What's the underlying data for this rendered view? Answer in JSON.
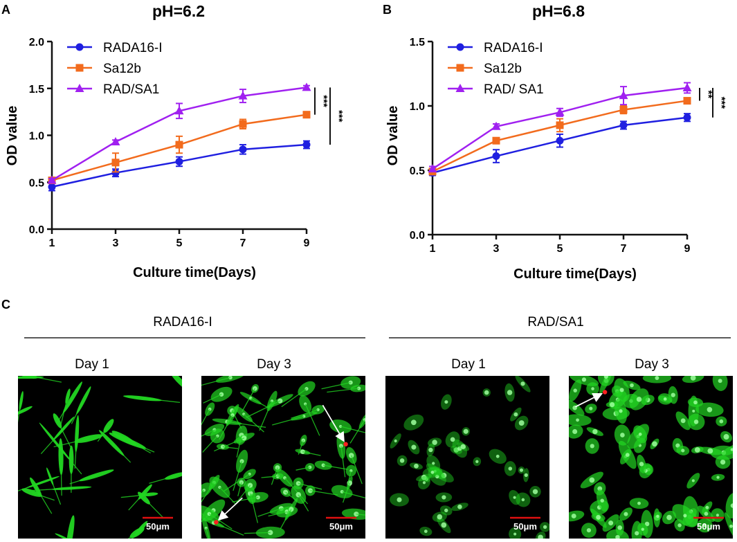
{
  "chart_data": [
    {
      "panel": "A",
      "type": "line",
      "title": "pH=6.2",
      "xlabel": "Culture time(Days)",
      "ylabel": "OD value",
      "x": [
        1,
        3,
        5,
        7,
        9
      ],
      "xticks": [
        "1",
        "3",
        "5",
        "7",
        "9"
      ],
      "ylim": [
        0,
        2.0
      ],
      "yticks": [
        "0.0",
        "0.5",
        "1.0",
        "1.5",
        "2.0"
      ],
      "grid": false,
      "legend": "top-left",
      "series": [
        {
          "name": "RADA16-I",
          "color": "#1f1fe0",
          "marker": "circle",
          "values": [
            0.45,
            0.6,
            0.72,
            0.85,
            0.9
          ],
          "error": [
            0.04,
            0.04,
            0.05,
            0.05,
            0.04
          ]
        },
        {
          "name": "Sa12b",
          "color": "#f26b1d",
          "marker": "square",
          "values": [
            0.52,
            0.71,
            0.9,
            1.12,
            1.22
          ],
          "error": [
            0.02,
            0.1,
            0.09,
            0.05,
            0.02
          ]
        },
        {
          "name": "RAD/SA1",
          "color": "#a020f0",
          "marker": "triangle",
          "values": [
            0.52,
            0.93,
            1.26,
            1.42,
            1.51
          ],
          "error": [
            0.02,
            0.02,
            0.08,
            0.07,
            0.02
          ]
        }
      ],
      "significance": [
        {
          "label": "***",
          "from_series": "RAD/SA1",
          "to_series": "Sa12b"
        },
        {
          "label": "***",
          "from_series": "RAD/SA1",
          "to_series": "RADA16-I"
        }
      ]
    },
    {
      "panel": "B",
      "type": "line",
      "title": "pH=6.8",
      "xlabel": "Culture time(Days)",
      "ylabel": "OD value",
      "x": [
        1,
        3,
        5,
        7,
        9
      ],
      "xticks": [
        "1",
        "3",
        "5",
        "7",
        "9"
      ],
      "ylim": [
        0,
        1.5
      ],
      "yticks": [
        "0.0",
        "0.5",
        "1.0",
        "1.5"
      ],
      "grid": false,
      "legend": "top-left",
      "series": [
        {
          "name": "RADA16-I",
          "color": "#1f1fe0",
          "marker": "circle",
          "values": [
            0.48,
            0.61,
            0.73,
            0.85,
            0.91
          ],
          "error": [
            0.02,
            0.05,
            0.05,
            0.03,
            0.03
          ]
        },
        {
          "name": "Sa12b",
          "color": "#f26b1d",
          "marker": "square",
          "values": [
            0.49,
            0.73,
            0.85,
            0.97,
            1.04
          ],
          "error": [
            0.02,
            0.02,
            0.05,
            0.03,
            0.02
          ]
        },
        {
          "name": "RAD/ SA1",
          "color": "#a020f0",
          "marker": "triangle",
          "values": [
            0.51,
            0.84,
            0.95,
            1.08,
            1.14
          ],
          "error": [
            0.02,
            0.02,
            0.03,
            0.07,
            0.04
          ]
        }
      ],
      "significance": [
        {
          "label": "**",
          "from_series": "RAD/ SA1",
          "to_series": "Sa12b"
        },
        {
          "label": "***",
          "from_series": "RAD/ SA1",
          "to_series": "RADA16-I"
        }
      ]
    }
  ],
  "panel_c": {
    "letter": "C",
    "groups": [
      {
        "label": "RADA16-I",
        "days": [
          "Day 1",
          "Day 3"
        ]
      },
      {
        "label": "RAD/SA1",
        "days": [
          "Day 1",
          "Day 3"
        ]
      }
    ],
    "scale_bar_label": "50μm",
    "stain_color": "#22d622",
    "marker_color": "#ff2020"
  }
}
